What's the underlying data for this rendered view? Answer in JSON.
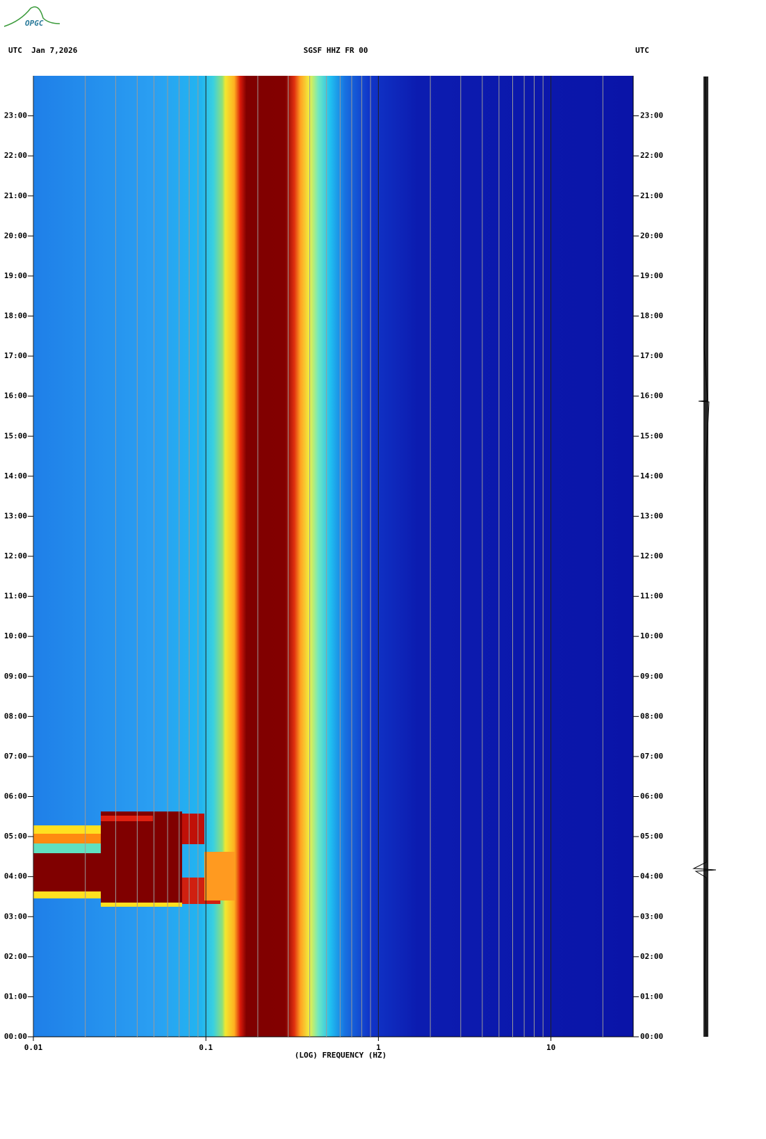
{
  "header": {
    "logo": "OPGC",
    "left": "UTC  Jan 7,2026",
    "center": "SGSF HHZ FR 00",
    "right": "UTC"
  },
  "chart_data": {
    "type": "spectrogram",
    "xlabel": "(LOG) FREQUENCY (HZ)",
    "xscale": "log",
    "xlim": [
      0.01,
      30
    ],
    "xticks": [
      0.01,
      0.1,
      1,
      10
    ],
    "xminor_ticks": [
      0.02,
      0.03,
      0.04,
      0.05,
      0.06,
      0.07,
      0.08,
      0.09,
      0.2,
      0.3,
      0.4,
      0.5,
      0.6,
      0.7,
      0.8,
      0.9,
      2,
      3,
      4,
      5,
      6,
      7,
      8,
      9,
      20
    ],
    "ylim": [
      0,
      24
    ],
    "yticks": [
      {
        "value": 0,
        "label": "00:00"
      },
      {
        "value": 1,
        "label": "01:00"
      },
      {
        "value": 2,
        "label": "02:00"
      },
      {
        "value": 3,
        "label": "03:00"
      },
      {
        "value": 4,
        "label": "04:00"
      },
      {
        "value": 5,
        "label": "05:00"
      },
      {
        "value": 6,
        "label": "06:00"
      },
      {
        "value": 7,
        "label": "07:00"
      },
      {
        "value": 8,
        "label": "08:00"
      },
      {
        "value": 9,
        "label": "09:00"
      },
      {
        "value": 10,
        "label": "10:00"
      },
      {
        "value": 11,
        "label": "11:00"
      },
      {
        "value": 12,
        "label": "12:00"
      },
      {
        "value": 13,
        "label": "13:00"
      },
      {
        "value": 14,
        "label": "14:00"
      },
      {
        "value": 15,
        "label": "15:00"
      },
      {
        "value": 16,
        "label": "16:00"
      },
      {
        "value": 17,
        "label": "17:00"
      },
      {
        "value": 18,
        "label": "18:00"
      },
      {
        "value": 19,
        "label": "19:00"
      },
      {
        "value": 20,
        "label": "20:00"
      },
      {
        "value": 21,
        "label": "21:00"
      },
      {
        "value": 22,
        "label": "22:00"
      },
      {
        "value": 23,
        "label": "23:00"
      }
    ]
  }
}
